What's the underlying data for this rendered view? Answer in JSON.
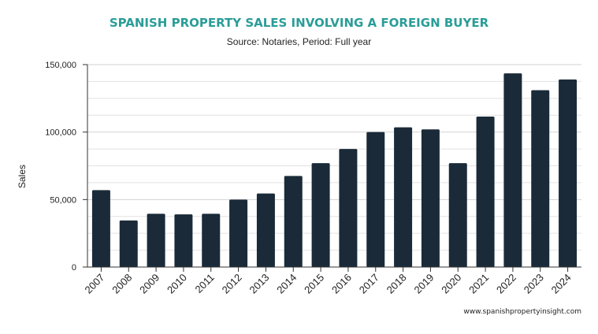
{
  "chart_data": {
    "type": "bar",
    "title": "SPANISH PROPERTY SALES INVOLVING A FOREIGN BUYER",
    "subtitle": "Source: Notaries, Period: Full year",
    "xlabel": "",
    "ylabel": "Sales",
    "categories": [
      "2007",
      "2008",
      "2009",
      "2010",
      "2011",
      "2012",
      "2013",
      "2014",
      "2015",
      "2016",
      "2017",
      "2018",
      "2019",
      "2020",
      "2021",
      "2022",
      "2023",
      "2024"
    ],
    "values": [
      57000,
      34500,
      39500,
      39000,
      39500,
      50000,
      54500,
      67500,
      77000,
      87500,
      100000,
      103500,
      102000,
      77000,
      111500,
      143500,
      131000,
      139000
    ],
    "ylim": [
      0,
      150000
    ],
    "yticks": [
      0,
      50000,
      100000,
      150000
    ],
    "ytick_labels": [
      "0",
      "50,000",
      "100,000",
      "150,000"
    ],
    "bar_color": "#1a2a38",
    "title_color": "#2a9d98",
    "grid": true,
    "legend": "none"
  },
  "footer": {
    "source_url": "www.spanishpropertyinsight.com"
  }
}
